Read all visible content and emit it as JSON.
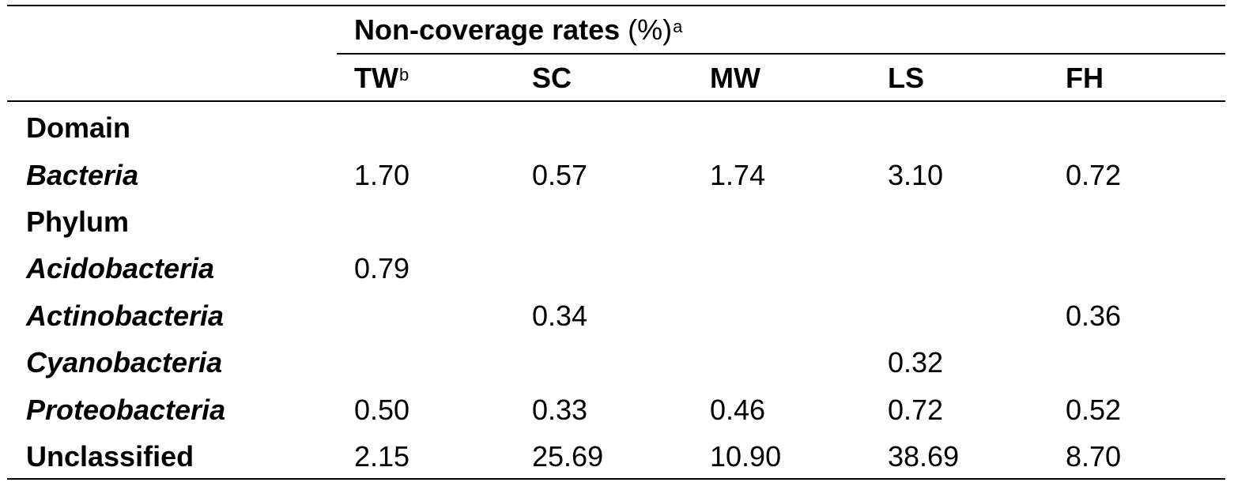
{
  "table": {
    "group_header": {
      "label_bold": "Non-coverage rates",
      "label_rest": " (%)",
      "note": "a"
    },
    "columns": [
      {
        "label": "TW",
        "note": "b"
      },
      {
        "label": "SC",
        "note": ""
      },
      {
        "label": "MW",
        "note": ""
      },
      {
        "label": "LS",
        "note": ""
      },
      {
        "label": "FH",
        "note": ""
      }
    ],
    "rows": [
      {
        "label": "Domain",
        "style": "section",
        "values": [
          "",
          "",
          "",
          "",
          ""
        ]
      },
      {
        "label": "Bacteria",
        "style": "taxon",
        "values": [
          "1.70",
          "0.57",
          "1.74",
          "3.10",
          "0.72"
        ]
      },
      {
        "label": "Phylum",
        "style": "section",
        "values": [
          "",
          "",
          "",
          "",
          ""
        ]
      },
      {
        "label": "Acidobacteria",
        "style": "taxon",
        "values": [
          "0.79",
          "",
          "",
          "",
          ""
        ]
      },
      {
        "label": "Actinobacteria",
        "style": "taxon",
        "values": [
          "",
          "0.34",
          "",
          "",
          "0.36"
        ]
      },
      {
        "label": "Cyanobacteria",
        "style": "taxon",
        "values": [
          "",
          "",
          "",
          "0.32",
          ""
        ]
      },
      {
        "label": "Proteobacteria",
        "style": "taxon",
        "values": [
          "0.50",
          "0.33",
          "0.46",
          "0.72",
          "0.52"
        ]
      },
      {
        "label": "Unclassified",
        "style": "section",
        "values": [
          "2.15",
          "25.69",
          "10.90",
          "38.69",
          "8.70"
        ]
      }
    ]
  }
}
